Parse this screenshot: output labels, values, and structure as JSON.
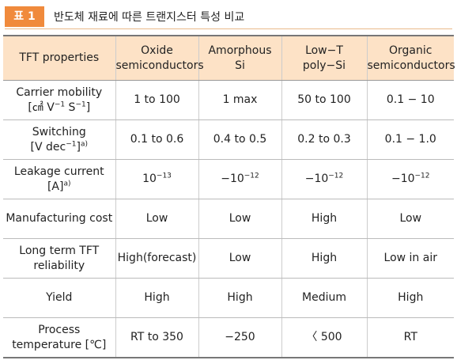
{
  "caption": {
    "label": "표 1",
    "title": "반도체 재료에 따른 트랜지스터 특성 비교"
  },
  "table": {
    "header": [
      [
        [
          "TFT properties"
        ]
      ],
      [
        [
          "Oxide"
        ],
        [
          "semiconductors"
        ]
      ],
      [
        [
          "Amorphous"
        ],
        [
          "Si"
        ]
      ],
      [
        [
          "Low−T"
        ],
        [
          "poly−Si"
        ]
      ],
      [
        [
          "Organic"
        ],
        [
          "semiconductors"
        ]
      ]
    ],
    "rows": [
      [
        [
          [
            "Carrier mobility"
          ],
          [
            "[㎠ V",
            {
              "sup": "−1"
            },
            " S",
            {
              "sup": "−1"
            },
            "]"
          ]
        ],
        [
          [
            "1 to 100"
          ]
        ],
        [
          [
            "1 max"
          ]
        ],
        [
          [
            "50 to 100"
          ]
        ],
        [
          [
            "0.1 − 10"
          ]
        ]
      ],
      [
        [
          [
            "Switching"
          ],
          [
            "[V dec",
            {
              "sup": "−1"
            },
            "]",
            {
              "sup": "a)"
            }
          ]
        ],
        [
          [
            "0.1 to 0.6"
          ]
        ],
        [
          [
            "0.4 to 0.5"
          ]
        ],
        [
          [
            "0.2 to 0.3"
          ]
        ],
        [
          [
            "0.1 − 1.0"
          ]
        ]
      ],
      [
        [
          [
            "Leakage current [A]",
            {
              "sup": "a)"
            }
          ]
        ],
        [
          [
            "10",
            {
              "sup": "−13"
            }
          ]
        ],
        [
          [
            "−10",
            {
              "sup": "−12"
            }
          ]
        ],
        [
          [
            "−10",
            {
              "sup": "−12"
            }
          ]
        ],
        [
          [
            "−10",
            {
              "sup": "−12"
            }
          ]
        ]
      ],
      [
        [
          [
            "Manufacturing cost"
          ]
        ],
        [
          [
            "Low"
          ]
        ],
        [
          [
            "Low"
          ]
        ],
        [
          [
            "High"
          ]
        ],
        [
          [
            "Low"
          ]
        ]
      ],
      [
        [
          [
            "Long term TFT"
          ],
          [
            "reliability"
          ]
        ],
        [
          [
            "High(forecast)"
          ]
        ],
        [
          [
            "Low"
          ]
        ],
        [
          [
            "High"
          ]
        ],
        [
          [
            "Low in air"
          ]
        ]
      ],
      [
        [
          [
            "Yield"
          ]
        ],
        [
          [
            "High"
          ]
        ],
        [
          [
            "High"
          ]
        ],
        [
          [
            "Medium"
          ]
        ],
        [
          [
            "High"
          ]
        ]
      ],
      [
        [
          [
            "Process"
          ],
          [
            "temperature [℃]"
          ]
        ],
        [
          [
            "RT to 350"
          ]
        ],
        [
          [
            "−250"
          ]
        ],
        [
          [
            "〈 500"
          ]
        ],
        [
          [
            "RT"
          ]
        ]
      ]
    ]
  }
}
